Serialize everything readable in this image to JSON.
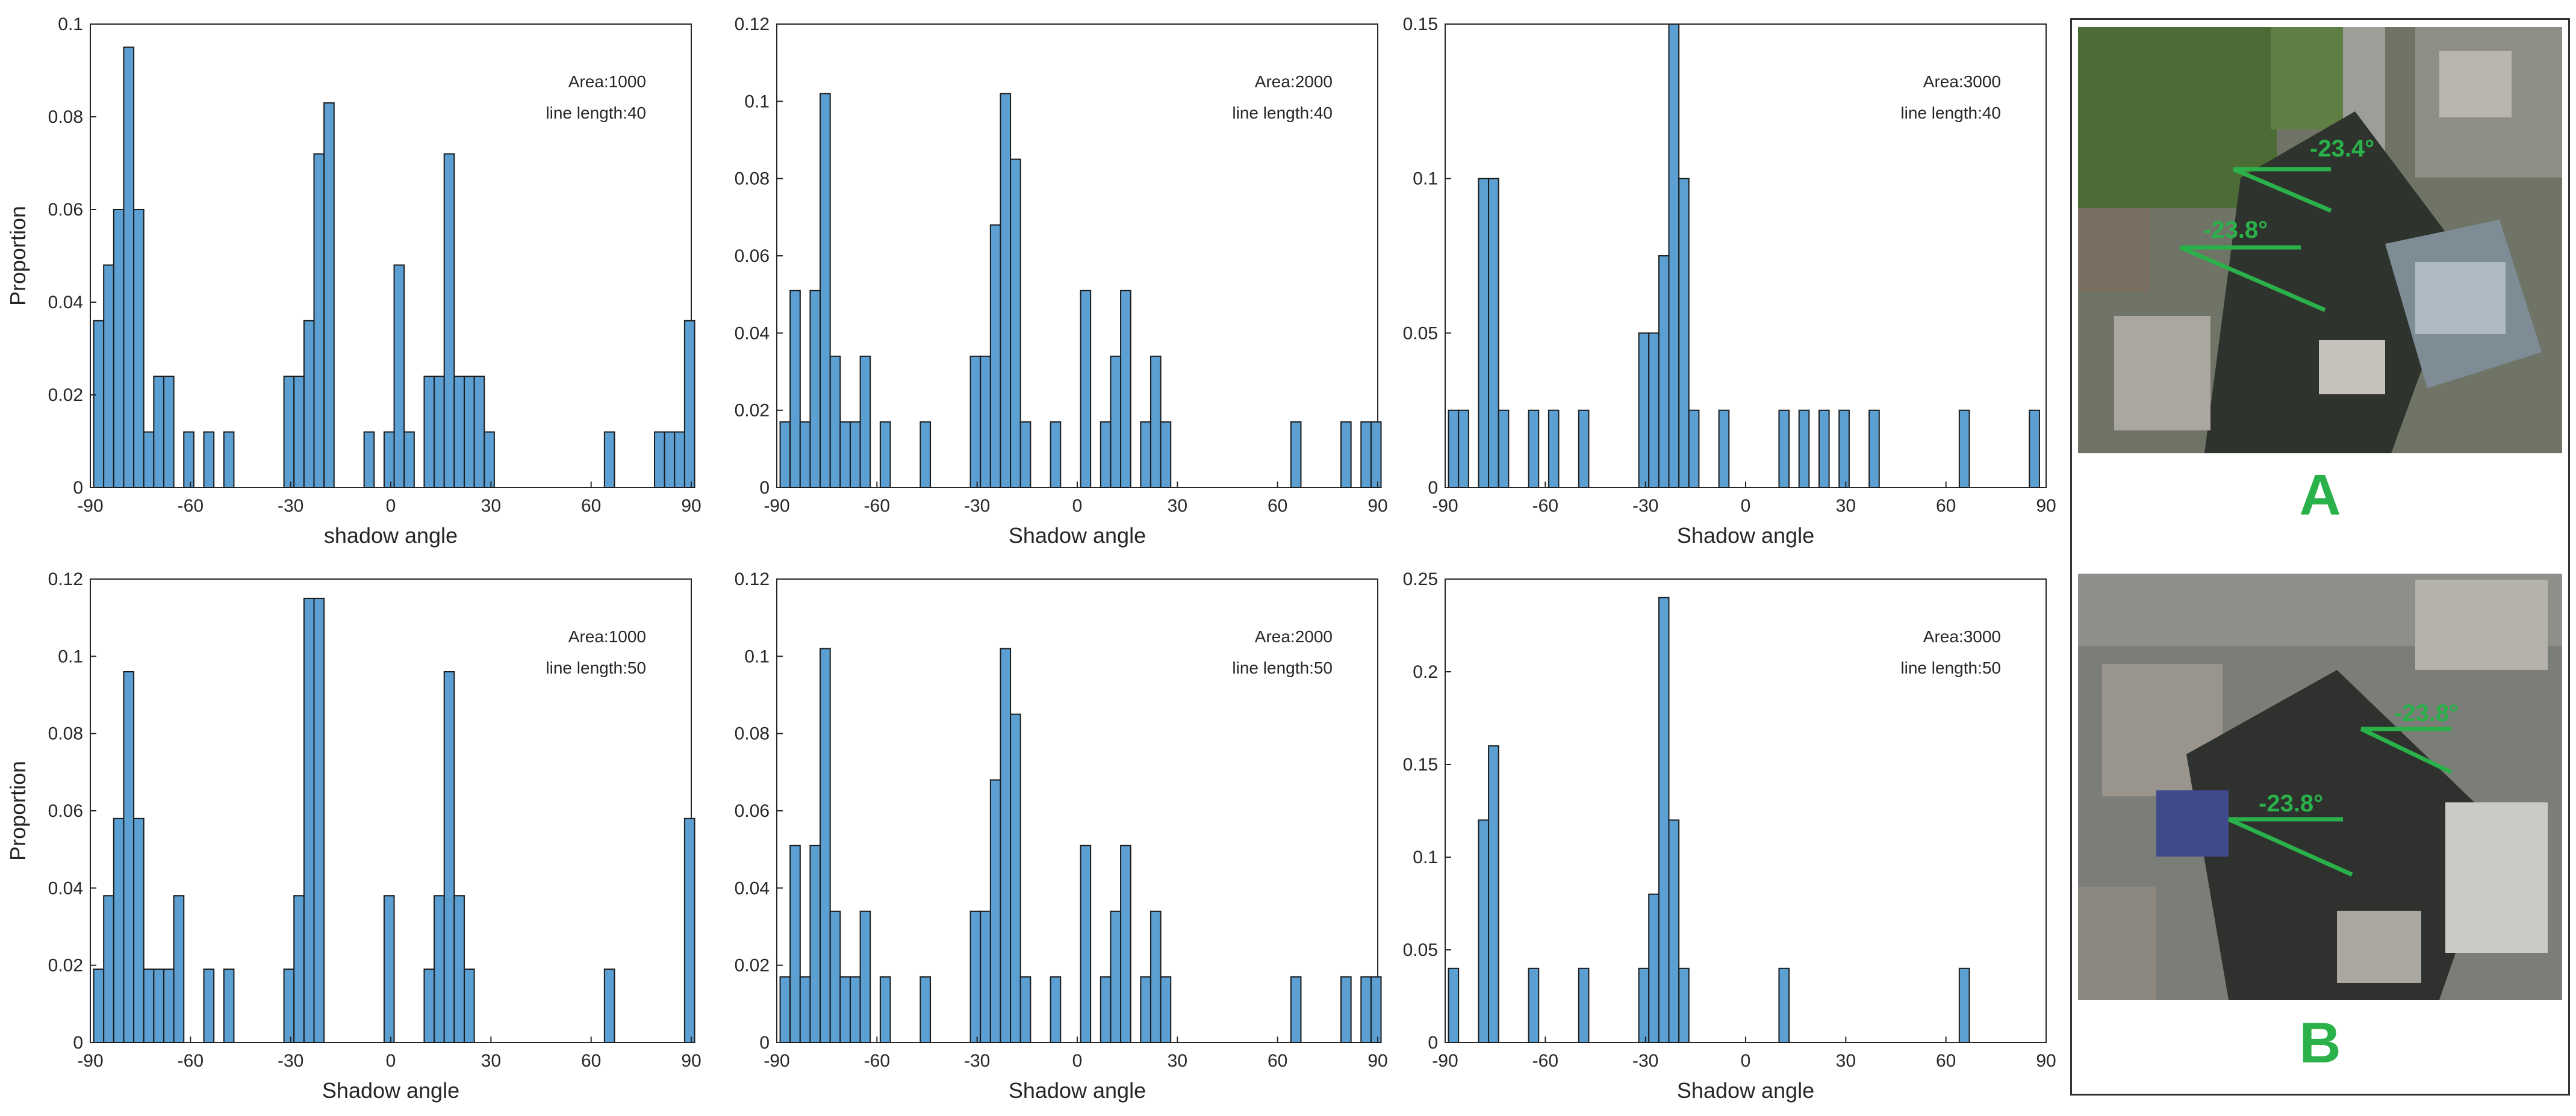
{
  "chart_data": [
    {
      "id": "c1",
      "type": "bar",
      "annotation": [
        "Area:1000",
        "line length:40"
      ],
      "xlabel": "shadow angle",
      "ylabel": "Proportion",
      "xlim": [
        -90,
        90
      ],
      "ylim": [
        0,
        0.1
      ],
      "xticks": [
        "-90",
        "-60",
        "-30",
        "0",
        "30",
        "60",
        "90"
      ],
      "yticks": [
        "0",
        "0.02",
        "0.04",
        "0.06",
        "0.08",
        "0.1"
      ],
      "bin_width": 3,
      "bins": [
        [
          -87.5,
          0.036
        ],
        [
          -84.5,
          0.048
        ],
        [
          -81.5,
          0.06
        ],
        [
          -78.5,
          0.095
        ],
        [
          -75.5,
          0.06
        ],
        [
          -72.5,
          0.012
        ],
        [
          -69.5,
          0.024
        ],
        [
          -66.5,
          0.024
        ],
        [
          -60.5,
          0.012
        ],
        [
          -54.5,
          0.012
        ],
        [
          -48.5,
          0.012
        ],
        [
          -30.5,
          0.024
        ],
        [
          -27.5,
          0.024
        ],
        [
          -24.5,
          0.036
        ],
        [
          -21.5,
          0.072
        ],
        [
          -18.5,
          0.083
        ],
        [
          -6.5,
          0.012
        ],
        [
          -0.5,
          0.012
        ],
        [
          2.5,
          0.048
        ],
        [
          5.5,
          0.012
        ],
        [
          11.5,
          0.024
        ],
        [
          14.5,
          0.024
        ],
        [
          17.5,
          0.072
        ],
        [
          20.5,
          0.024
        ],
        [
          23.5,
          0.024
        ],
        [
          26.5,
          0.024
        ],
        [
          29.5,
          0.012
        ],
        [
          65.5,
          0.012
        ],
        [
          80.5,
          0.012
        ],
        [
          83.5,
          0.012
        ],
        [
          86.5,
          0.012
        ],
        [
          89.5,
          0.036
        ]
      ]
    },
    {
      "id": "c2",
      "type": "bar",
      "annotation": [
        "Area:2000",
        "line length:40"
      ],
      "xlabel": "Shadow angle",
      "ylabel": "",
      "xlim": [
        -90,
        90
      ],
      "ylim": [
        0,
        0.12
      ],
      "xticks": [
        "-90",
        "-60",
        "-30",
        "0",
        "30",
        "60",
        "90"
      ],
      "yticks": [
        "0",
        "0.02",
        "0.04",
        "0.06",
        "0.08",
        "0.1",
        "0.12"
      ],
      "bin_width": 3,
      "bins": [
        [
          -87.5,
          0.017
        ],
        [
          -84.5,
          0.051
        ],
        [
          -81.5,
          0.017
        ],
        [
          -78.5,
          0.051
        ],
        [
          -75.5,
          0.102
        ],
        [
          -72.5,
          0.034
        ],
        [
          -69.5,
          0.017
        ],
        [
          -66.5,
          0.017
        ],
        [
          -63.5,
          0.034
        ],
        [
          -57.5,
          0.017
        ],
        [
          -45.5,
          0.017
        ],
        [
          -30.5,
          0.034
        ],
        [
          -27.5,
          0.034
        ],
        [
          -24.5,
          0.068
        ],
        [
          -21.5,
          0.102
        ],
        [
          -18.5,
          0.085
        ],
        [
          -15.5,
          0.017
        ],
        [
          -6.5,
          0.017
        ],
        [
          2.5,
          0.051
        ],
        [
          8.5,
          0.017
        ],
        [
          11.5,
          0.034
        ],
        [
          14.5,
          0.051
        ],
        [
          20.5,
          0.017
        ],
        [
          23.5,
          0.034
        ],
        [
          26.5,
          0.017
        ],
        [
          65.5,
          0.017
        ],
        [
          80.5,
          0.017
        ],
        [
          86.5,
          0.017
        ],
        [
          89.5,
          0.017
        ]
      ]
    },
    {
      "id": "c3",
      "type": "bar",
      "annotation": [
        "Area:3000",
        "line length:40"
      ],
      "xlabel": "Shadow angle",
      "ylabel": "",
      "xlim": [
        -90,
        90
      ],
      "ylim": [
        0,
        0.15
      ],
      "xticks": [
        "-90",
        "-60",
        "-30",
        "0",
        "30",
        "60",
        "90"
      ],
      "yticks": [
        "0",
        "0.05",
        "0.1",
        "0.15"
      ],
      "bin_width": 3,
      "bins": [
        [
          -87.5,
          0.025
        ],
        [
          -84.5,
          0.025
        ],
        [
          -78.5,
          0.1
        ],
        [
          -75.5,
          0.1
        ],
        [
          -72.5,
          0.025
        ],
        [
          -63.5,
          0.025
        ],
        [
          -57.5,
          0.025
        ],
        [
          -48.5,
          0.025
        ],
        [
          -30.5,
          0.05
        ],
        [
          -27.5,
          0.05
        ],
        [
          -24.5,
          0.075
        ],
        [
          -21.5,
          0.15
        ],
        [
          -18.5,
          0.1
        ],
        [
          -15.5,
          0.025
        ],
        [
          -6.5,
          0.025
        ],
        [
          11.5,
          0.025
        ],
        [
          17.5,
          0.025
        ],
        [
          23.5,
          0.025
        ],
        [
          29.5,
          0.025
        ],
        [
          38.5,
          0.025
        ],
        [
          65.5,
          0.025
        ],
        [
          86.5,
          0.025
        ]
      ]
    },
    {
      "id": "c4",
      "type": "bar",
      "annotation": [
        "Area:1000",
        "line length:50"
      ],
      "xlabel": "Shadow angle",
      "ylabel": "Proportion",
      "xlim": [
        -90,
        90
      ],
      "ylim": [
        0,
        0.12
      ],
      "xticks": [
        "-90",
        "-60",
        "-30",
        "0",
        "30",
        "60",
        "90"
      ],
      "yticks": [
        "0",
        "0.02",
        "0.04",
        "0.06",
        "0.08",
        "0.1",
        "0.12"
      ],
      "bin_width": 3,
      "bins": [
        [
          -87.5,
          0.019
        ],
        [
          -84.5,
          0.038
        ],
        [
          -81.5,
          0.058
        ],
        [
          -78.5,
          0.096
        ],
        [
          -75.5,
          0.058
        ],
        [
          -72.5,
          0.019
        ],
        [
          -69.5,
          0.019
        ],
        [
          -66.5,
          0.019
        ],
        [
          -63.5,
          0.038
        ],
        [
          -54.5,
          0.019
        ],
        [
          -48.5,
          0.019
        ],
        [
          -30.5,
          0.019
        ],
        [
          -27.5,
          0.038
        ],
        [
          -24.5,
          0.115
        ],
        [
          -21.5,
          0.115
        ],
        [
          -0.5,
          0.038
        ],
        [
          11.5,
          0.019
        ],
        [
          14.5,
          0.038
        ],
        [
          17.5,
          0.096
        ],
        [
          20.5,
          0.038
        ],
        [
          23.5,
          0.019
        ],
        [
          65.5,
          0.019
        ],
        [
          89.5,
          0.058
        ]
      ]
    },
    {
      "id": "c5",
      "type": "bar",
      "annotation": [
        "Area:2000",
        "line length:50"
      ],
      "xlabel": "Shadow angle",
      "ylabel": "",
      "xlim": [
        -90,
        90
      ],
      "ylim": [
        0,
        0.12
      ],
      "xticks": [
        "-90",
        "-60",
        "-30",
        "0",
        "30",
        "60",
        "90"
      ],
      "yticks": [
        "0",
        "0.02",
        "0.04",
        "0.06",
        "0.08",
        "0.1",
        "0.12"
      ],
      "bin_width": 3,
      "bins": [
        [
          -87.5,
          0.017
        ],
        [
          -84.5,
          0.051
        ],
        [
          -81.5,
          0.017
        ],
        [
          -78.5,
          0.051
        ],
        [
          -75.5,
          0.102
        ],
        [
          -72.5,
          0.034
        ],
        [
          -69.5,
          0.017
        ],
        [
          -66.5,
          0.017
        ],
        [
          -63.5,
          0.034
        ],
        [
          -57.5,
          0.017
        ],
        [
          -45.5,
          0.017
        ],
        [
          -30.5,
          0.034
        ],
        [
          -27.5,
          0.034
        ],
        [
          -24.5,
          0.068
        ],
        [
          -21.5,
          0.102
        ],
        [
          -18.5,
          0.085
        ],
        [
          -15.5,
          0.017
        ],
        [
          -6.5,
          0.017
        ],
        [
          2.5,
          0.051
        ],
        [
          8.5,
          0.017
        ],
        [
          11.5,
          0.034
        ],
        [
          14.5,
          0.051
        ],
        [
          20.5,
          0.017
        ],
        [
          23.5,
          0.034
        ],
        [
          26.5,
          0.017
        ],
        [
          65.5,
          0.017
        ],
        [
          80.5,
          0.017
        ],
        [
          86.5,
          0.017
        ],
        [
          89.5,
          0.017
        ]
      ]
    },
    {
      "id": "c6",
      "type": "bar",
      "annotation": [
        "Area:3000",
        "line length:50"
      ],
      "xlabel": "Shadow angle",
      "ylabel": "",
      "xlim": [
        -90,
        90
      ],
      "ylim": [
        0,
        0.25
      ],
      "xticks": [
        "-90",
        "-60",
        "-30",
        "0",
        "30",
        "60",
        "90"
      ],
      "yticks": [
        "0",
        "0.05",
        "0.1",
        "0.15",
        "0.2",
        "0.25"
      ],
      "bin_width": 3,
      "bins": [
        [
          -87.5,
          0.04
        ],
        [
          -78.5,
          0.12
        ],
        [
          -75.5,
          0.16
        ],
        [
          -63.5,
          0.04
        ],
        [
          -48.5,
          0.04
        ],
        [
          -30.5,
          0.04
        ],
        [
          -27.5,
          0.08
        ],
        [
          -24.5,
          0.24
        ],
        [
          -21.5,
          0.12
        ],
        [
          -18.5,
          0.04
        ],
        [
          11.5,
          0.04
        ],
        [
          65.5,
          0.04
        ]
      ]
    }
  ],
  "photo_panel": {
    "label_a": "A",
    "label_b": "B",
    "a_angles": [
      "-23.4°",
      "-23.8°"
    ],
    "b_angles": [
      "-23.8°",
      "-23.8°"
    ]
  },
  "colors": {
    "bar_fill": "#5c9fd2",
    "bar_edge": "#1b1b1b",
    "annotation_green": "#2bb14a"
  }
}
